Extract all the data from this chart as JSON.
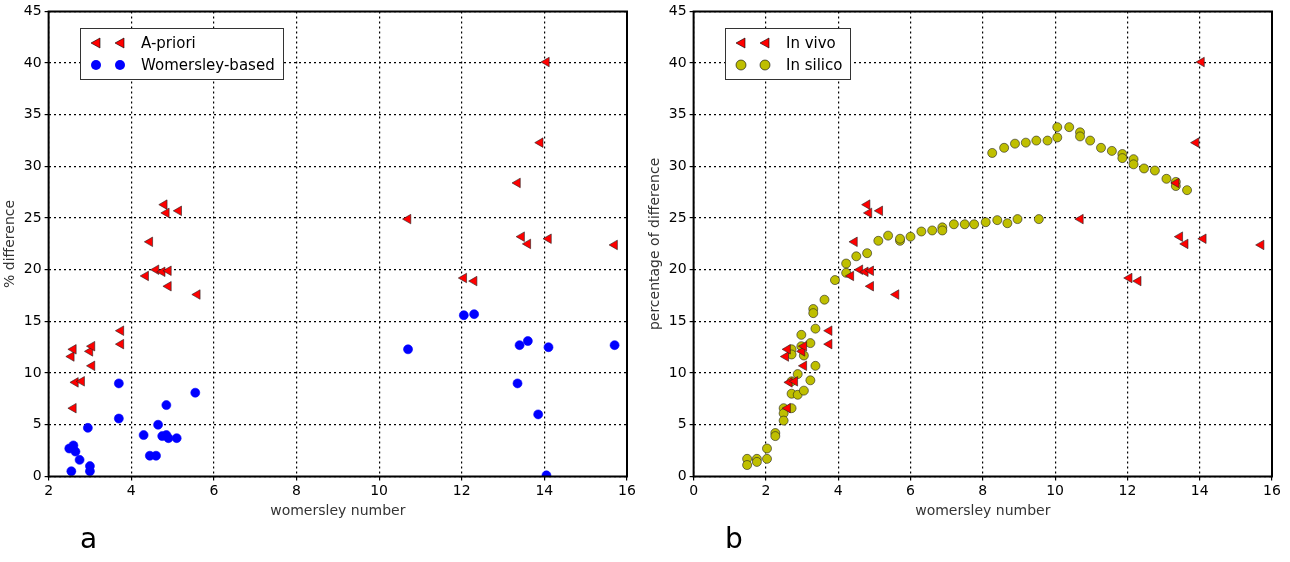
{
  "chart_data": [
    {
      "type": "scatter",
      "xlabel": "womersley number",
      "ylabel": "% difference",
      "xlim": [
        2,
        16
      ],
      "xticks": [
        2,
        4,
        6,
        8,
        10,
        12,
        14,
        16
      ],
      "ylim": [
        0,
        45
      ],
      "yticks": [
        0,
        5,
        10,
        15,
        20,
        25,
        30,
        35,
        40,
        45
      ],
      "grid": true,
      "legend": "top left",
      "annotations": [
        "a"
      ],
      "series": [
        {
          "name": "A-priori",
          "color": "#ff0000",
          "marker": "triangle",
          "x": [
            2.55,
            2.6,
            2.6,
            2.65,
            2.8,
            3.0,
            3.05,
            3.05,
            3.75,
            3.75,
            4.35,
            4.45,
            4.6,
            4.75,
            4.8,
            4.85,
            4.9,
            4.9,
            5.15,
            5.6,
            10.7,
            12.05,
            12.3,
            13.35,
            13.45,
            13.6,
            13.9,
            14.05,
            14.1,
            15.7
          ],
          "values": [
            11.6,
            12.3,
            6.6,
            9.1,
            9.2,
            12.1,
            12.6,
            10.7,
            14.1,
            12.8,
            19.4,
            22.7,
            20.0,
            19.8,
            26.3,
            25.5,
            19.9,
            18.4,
            25.7,
            17.6,
            24.9,
            19.2,
            18.9,
            28.4,
            23.2,
            22.5,
            32.3,
            40.1,
            23.0,
            22.4
          ]
        },
        {
          "name": "Womersley-based",
          "color": "#0000ff",
          "marker": "circle",
          "x": [
            2.5,
            2.6,
            2.65,
            2.55,
            2.75,
            2.95,
            3.0,
            3.0,
            3.7,
            3.7,
            4.3,
            4.45,
            4.6,
            4.65,
            4.75,
            4.85,
            4.9,
            4.85,
            5.1,
            5.55,
            10.7,
            12.05,
            12.3,
            13.4,
            13.6,
            13.35,
            13.85,
            14.05,
            14.1,
            15.7
          ],
          "values": [
            2.7,
            3.0,
            2.4,
            0.5,
            1.6,
            4.7,
            1.0,
            0.5,
            5.6,
            9.0,
            4.0,
            2.0,
            2.0,
            5.0,
            3.9,
            4.0,
            3.7,
            6.9,
            3.7,
            8.1,
            12.3,
            15.6,
            15.7,
            12.7,
            13.1,
            9.0,
            6.0,
            0.1,
            12.5,
            12.7
          ]
        }
      ]
    },
    {
      "type": "scatter",
      "xlabel": "womersley number",
      "ylabel": "percentage of difference",
      "xlim": [
        0,
        16
      ],
      "xticks": [
        0,
        2,
        4,
        6,
        8,
        10,
        12,
        14,
        16
      ],
      "ylim": [
        0,
        45
      ],
      "yticks": [
        0,
        5,
        10,
        15,
        20,
        25,
        30,
        35,
        40,
        45
      ],
      "grid": true,
      "legend": "top left",
      "annotations": [
        "b"
      ],
      "series": [
        {
          "name": "In vivo",
          "color": "#ff0000",
          "marker": "triangle",
          "x": [
            2.55,
            2.6,
            2.6,
            2.65,
            2.8,
            3.0,
            3.05,
            3.05,
            3.75,
            3.75,
            4.35,
            4.45,
            4.6,
            4.75,
            4.8,
            4.85,
            4.9,
            4.9,
            5.15,
            5.6,
            10.7,
            12.05,
            12.3,
            13.35,
            13.45,
            13.6,
            13.9,
            14.05,
            14.1,
            15.7
          ],
          "values": [
            11.6,
            12.3,
            6.6,
            9.1,
            9.2,
            12.1,
            12.6,
            10.7,
            14.1,
            12.8,
            19.4,
            22.7,
            20.0,
            19.8,
            26.3,
            25.5,
            19.9,
            18.4,
            25.7,
            17.6,
            24.9,
            19.2,
            18.9,
            28.4,
            23.2,
            22.5,
            32.3,
            40.1,
            23.0,
            22.4
          ]
        },
        {
          "name": "In silico",
          "color": "#bfbf00",
          "marker": "circle",
          "x": [
            1.48,
            1.48,
            1.75,
            1.75,
            2.03,
            2.03,
            2.26,
            2.26,
            2.49,
            2.49,
            2.49,
            2.71,
            2.71,
            2.71,
            2.71,
            2.71,
            2.88,
            2.88,
            2.98,
            2.98,
            3.05,
            3.05,
            3.23,
            3.23,
            3.31,
            3.31,
            3.37,
            3.37,
            3.62,
            3.91,
            4.22,
            4.22,
            4.5,
            4.8,
            5.11,
            5.38,
            5.71,
            5.71,
            6.0,
            6.3,
            6.6,
            6.88,
            6.88,
            7.2,
            7.5,
            7.76,
            8.08,
            8.4,
            8.68,
            8.96,
            9.55,
            8.26,
            8.59,
            8.89,
            9.19,
            9.48,
            9.79,
            10.06,
            10.06,
            10.39,
            10.69,
            10.69,
            10.97,
            11.27,
            11.57,
            11.86,
            11.86,
            12.17,
            12.17,
            12.46,
            12.76,
            13.08,
            13.34,
            13.34,
            13.65
          ],
          "values": [
            1.7,
            1.1,
            1.7,
            1.4,
            2.7,
            1.7,
            4.2,
            3.9,
            6.6,
            6.1,
            5.4,
            6.6,
            8.0,
            9.2,
            12.3,
            11.8,
            9.9,
            7.9,
            13.7,
            12.6,
            11.7,
            8.3,
            12.9,
            9.3,
            16.2,
            15.8,
            14.3,
            10.7,
            17.1,
            19.0,
            20.6,
            19.7,
            21.3,
            21.6,
            22.8,
            23.3,
            22.8,
            23.0,
            23.2,
            23.7,
            23.8,
            24.1,
            23.8,
            24.4,
            24.4,
            24.4,
            24.6,
            24.8,
            24.5,
            24.9,
            24.9,
            31.3,
            31.8,
            32.2,
            32.3,
            32.5,
            32.5,
            33.8,
            32.8,
            33.8,
            33.3,
            32.9,
            32.5,
            31.8,
            31.5,
            31.2,
            30.8,
            30.7,
            30.2,
            29.8,
            29.6,
            28.8,
            28.5,
            28.1,
            27.7
          ]
        }
      ]
    }
  ]
}
